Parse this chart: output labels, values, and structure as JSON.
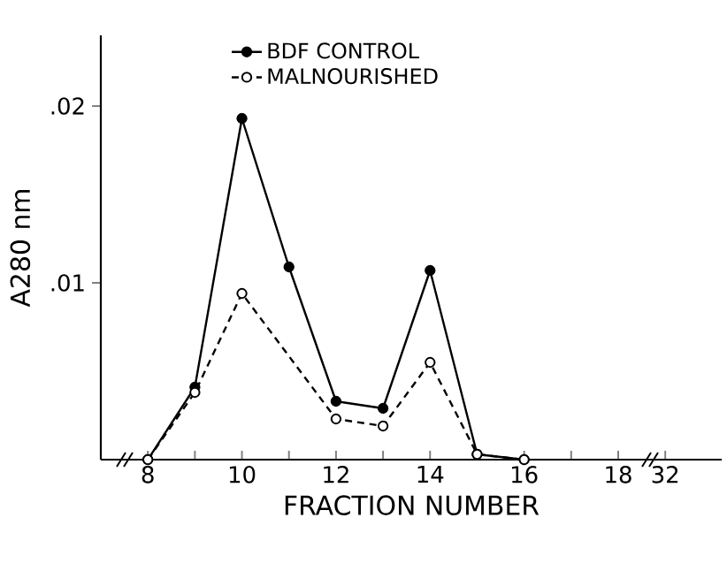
{
  "chart_data": {
    "type": "line",
    "xlabel": "FRACTION NUMBER",
    "ylabel": "A280 nm",
    "categories": [
      "8",
      null,
      "10",
      null,
      "12",
      null,
      "14",
      null,
      "16",
      null,
      "18",
      "32"
    ],
    "ylim": [
      0,
      0.024
    ],
    "yticks": [
      {
        "value": 0.01,
        "label": ".01"
      },
      {
        "value": 0.02,
        "label": ".02"
      }
    ],
    "legend": "top",
    "marker": "circle",
    "series": [
      {
        "name": "BDF CONTROL",
        "color": "#000000",
        "line_style": "solid",
        "values": [
          0,
          0.0041,
          0.0193,
          0.0109,
          0.0033,
          0.0029,
          0.0107,
          0.0003,
          0,
          null,
          null,
          null
        ]
      },
      {
        "name": "MALNOURISHED",
        "color": "#000000",
        "line_style": "dashed",
        "values": [
          0,
          0.0038,
          0.0094,
          null,
          0.0023,
          0.0019,
          0.0055,
          0.0003,
          0,
          null,
          null,
          null
        ]
      }
    ]
  }
}
